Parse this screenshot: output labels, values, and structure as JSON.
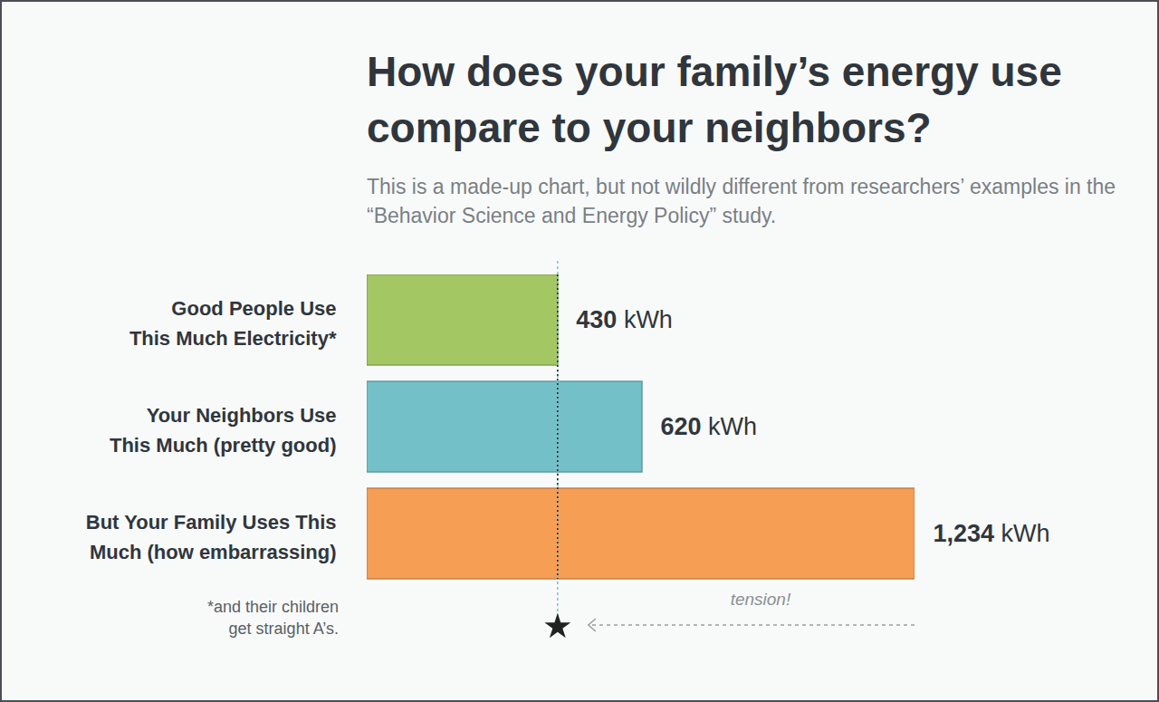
{
  "chart_data": {
    "type": "bar",
    "orientation": "horizontal",
    "title": "How does your family’s energy use compare to your neighbors?",
    "subtitle": "This is a made-up chart, but not wildly different from researchers’ examples in the “Behavior Science and Energy Policy” study.",
    "categories": [
      "Good People Use\nThis Much Electricity*",
      "Your Neighbors Use\nThis Much (pretty good)",
      "But Your Family Uses This\nMuch (how embarrassing)"
    ],
    "values": [
      430,
      620,
      1234
    ],
    "value_labels": [
      "430 kWh",
      "620 kWh",
      "1,234 kWh"
    ],
    "colors": [
      "#a3c762",
      "#74c0c9",
      "#f79e55"
    ],
    "xlim": [
      0,
      1234
    ],
    "data_labels": true,
    "tick_labels": "y",
    "reference_line": 430,
    "footnote": "*and their children\nget straight A’s.",
    "annotation": {
      "text": "tension!",
      "from": 1234,
      "to": 430
    }
  }
}
